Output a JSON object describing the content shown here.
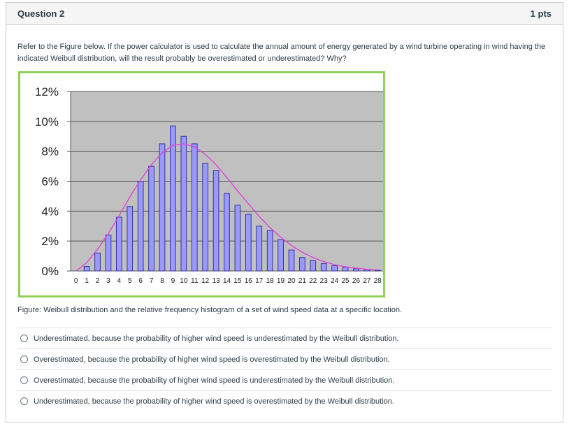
{
  "question": {
    "title": "Question 2",
    "points": "1 pts",
    "text": "Refer to the Figure below. If the power calculator is used to calculate the annual amount of energy generated by a wind turbine operating in wind having the indicated Weibull distribution, will the result probably be overestimated or underestimated? Why?",
    "caption": "Figure: Weibull distribution and the relative frequency histogram of a set of wind speed data at a specific location."
  },
  "answers": [
    {
      "label": "Underestimated, because the probability of higher wind speed is underestimated by the Weibull distribution."
    },
    {
      "label": "Overestimated, because the probability of higher wind speed is overestimated by the Weibull distribution."
    },
    {
      "label": "Overestimated, because the probability of higher wind speed is underestimated by the Weibull distribution."
    },
    {
      "label": "Underestimated, because the probability of higher wind speed is overestimated by the Weibull distribution."
    }
  ],
  "chart_data": {
    "type": "bar",
    "categories": [
      "0",
      "1",
      "2",
      "3",
      "4",
      "5",
      "6",
      "7",
      "8",
      "9",
      "10",
      "11",
      "12",
      "13",
      "14",
      "15",
      "16",
      "17",
      "18",
      "19",
      "20",
      "21",
      "22",
      "23",
      "24",
      "25",
      "26",
      "27",
      "28"
    ],
    "ylim": [
      0,
      12
    ],
    "yticks": [
      "0%",
      "2%",
      "4%",
      "6%",
      "8%",
      "10%",
      "12%"
    ],
    "grid": true,
    "series": [
      {
        "kind": "bar",
        "values": [
          0,
          0.3,
          1.2,
          2.4,
          3.6,
          4.3,
          6.0,
          7.0,
          8.5,
          9.7,
          9.0,
          8.5,
          7.2,
          6.7,
          5.2,
          4.4,
          3.8,
          3.0,
          2.7,
          2.1,
          1.4,
          0.9,
          0.7,
          0.5,
          0.35,
          0.25,
          0.15,
          0.1,
          0.05
        ],
        "color": "#9999ff"
      },
      {
        "kind": "line",
        "values": [
          0,
          0.55,
          1.45,
          2.5,
          3.7,
          4.95,
          6.1,
          7.1,
          7.9,
          8.4,
          8.5,
          8.3,
          7.8,
          7.1,
          6.25,
          5.35,
          4.5,
          3.65,
          2.9,
          2.25,
          1.7,
          1.25,
          0.9,
          0.63,
          0.42,
          0.28,
          0.18,
          0.11,
          0.07
        ],
        "color": "#dd44dd"
      }
    ]
  },
  "colors": {
    "plot_bg": "#c0c0c0",
    "bar_fill": "#9999ff",
    "bar_stroke": "#333399",
    "curve": "#dd44dd",
    "border": "#8fcf5a"
  }
}
